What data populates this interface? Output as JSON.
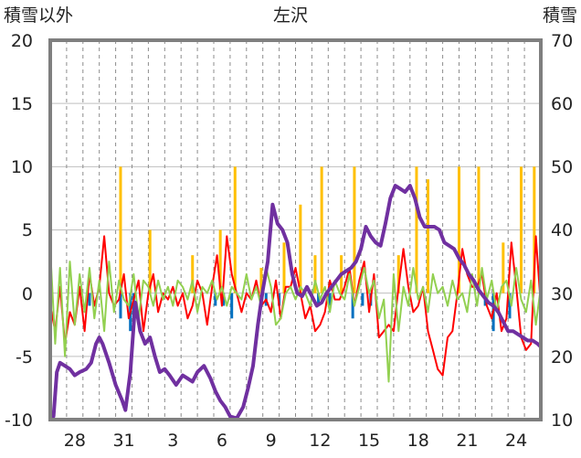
{
  "chart_data": {
    "type": "line",
    "title": "左沢",
    "ylabel_left": "積雪以外",
    "ylabel_right": "積雪",
    "ylim_left": [
      -10,
      20
    ],
    "ylim_right": [
      10,
      70
    ],
    "left_ticks": [
      "20",
      "15",
      "10",
      "5",
      "0",
      "-5",
      "-10"
    ],
    "right_ticks": [
      "70",
      "60",
      "50",
      "40",
      "30",
      "20",
      "10"
    ],
    "x_tick_labels": [
      "28",
      "31",
      "3",
      "6",
      "9",
      "12",
      "15",
      "18",
      "21",
      "24"
    ],
    "x_tick_positions": [
      1.5,
      4.5,
      7.5,
      10.5,
      13.5,
      16.5,
      19.5,
      22.5,
      25.5,
      28.5
    ],
    "xlim": [
      0,
      30
    ],
    "grid": true,
    "colors": {
      "snow_depth": "#7030A0",
      "temperature": "#FF0000",
      "precipitation": "#FFC000",
      "wind_speed": "#92D050",
      "snowfall": "#0070C0",
      "frame": "#7f7f7f"
    },
    "series": [
      {
        "axis": "right",
        "style": "line",
        "color": "#7030A0",
        "x": [
          0,
          0.2,
          0.4,
          0.6,
          0.9,
          1.2,
          1.5,
          1.8,
          2.2,
          2.5,
          2.8,
          3.0,
          3.2,
          3.6,
          4.0,
          4.4,
          4.6,
          4.9,
          5.2,
          5.5,
          5.8,
          6.1,
          6.4,
          6.7,
          7.0,
          7.3,
          7.7,
          8.1,
          8.4,
          8.7,
          9.0,
          9.4,
          9.8,
          10.1,
          10.4,
          10.7,
          11.0,
          11.4,
          11.8,
          12.1,
          12.4,
          12.7,
          13.0,
          13.3,
          13.6,
          13.9,
          14.2,
          14.5,
          14.8,
          15.1,
          15.4,
          15.7,
          16.0,
          16.3,
          16.6,
          16.9,
          17.2,
          17.5,
          17.8,
          18.1,
          18.4,
          18.7,
          19.0,
          19.3,
          19.6,
          19.9,
          20.2,
          20.5,
          20.8,
          21.1,
          21.4,
          21.7,
          22.0,
          22.3,
          22.6,
          22.9,
          23.2,
          23.5,
          23.8,
          24.1,
          24.4,
          24.7,
          25.0,
          25.3,
          25.6,
          25.9,
          26.2,
          26.5,
          26.8,
          27.1,
          27.4,
          27.7,
          28.0,
          28.3,
          28.6,
          28.9,
          29.2,
          29.5,
          29.8,
          30.0
        ],
        "y": [
          10.2,
          10.5,
          17.5,
          19.0,
          18.5,
          18.0,
          17.0,
          17.5,
          18.0,
          19.0,
          22.0,
          23.0,
          22.0,
          19.0,
          15.5,
          13.0,
          11.5,
          17.5,
          28.5,
          24.0,
          22.0,
          23.0,
          20.0,
          17.5,
          18.0,
          17.0,
          15.5,
          17.0,
          16.5,
          16.0,
          17.5,
          18.5,
          16.5,
          14.5,
          13.0,
          12.0,
          10.5,
          10.2,
          12.0,
          15.0,
          18.5,
          25.0,
          30.5,
          35.0,
          44.0,
          41.0,
          40.0,
          38.0,
          33.0,
          30.0,
          29.5,
          31.0,
          29.5,
          28.0,
          28.5,
          30.0,
          31.0,
          32.0,
          33.0,
          33.5,
          34.0,
          35.0,
          37.0,
          40.5,
          39.0,
          38.0,
          37.5,
          41.0,
          45.0,
          47.0,
          46.5,
          46.0,
          47.0,
          45.0,
          42.0,
          40.5,
          40.5,
          40.5,
          40.0,
          38.0,
          37.5,
          37.0,
          35.5,
          34.5,
          33.0,
          32.0,
          30.5,
          29.5,
          28.5,
          28.0,
          27.0,
          25.5,
          24.0,
          24.0,
          23.5,
          23.0,
          22.5,
          22.5,
          22.0,
          21.5
        ]
      },
      {
        "axis": "left",
        "style": "line",
        "color": "#FF0000",
        "x": [
          0,
          0.3,
          0.6,
          0.9,
          1.2,
          1.5,
          1.8,
          2.1,
          2.4,
          2.7,
          3.0,
          3.3,
          3.6,
          3.9,
          4.2,
          4.5,
          4.8,
          5.1,
          5.4,
          5.7,
          6.0,
          6.3,
          6.6,
          6.9,
          7.2,
          7.5,
          7.8,
          8.1,
          8.4,
          8.7,
          9.0,
          9.3,
          9.6,
          9.9,
          10.2,
          10.5,
          10.8,
          11.1,
          11.4,
          11.7,
          12.0,
          12.3,
          12.6,
          12.9,
          13.2,
          13.5,
          13.8,
          14.1,
          14.4,
          14.7,
          15.0,
          15.3,
          15.6,
          15.9,
          16.2,
          16.5,
          16.8,
          17.1,
          17.4,
          17.7,
          18.0,
          18.3,
          18.6,
          18.9,
          19.2,
          19.5,
          19.8,
          20.1,
          20.4,
          20.7,
          21.0,
          21.3,
          21.6,
          21.9,
          22.2,
          22.5,
          22.8,
          23.1,
          23.4,
          23.7,
          24.0,
          24.3,
          24.6,
          24.9,
          25.2,
          25.5,
          25.8,
          26.1,
          26.4,
          26.7,
          27.0,
          27.3,
          27.6,
          27.9,
          28.2,
          28.5,
          28.8,
          29.1,
          29.4,
          29.7,
          30.0
        ],
        "y": [
          -1.0,
          -3.0,
          0.5,
          -4.0,
          -1.5,
          -2.5,
          0.5,
          -3.0,
          1.5,
          -1.0,
          0.5,
          4.5,
          0.0,
          -1.0,
          -0.5,
          1.5,
          -2.0,
          -0.5,
          1.0,
          -3.0,
          0.0,
          1.5,
          -1.5,
          0.0,
          -0.5,
          0.5,
          -1.0,
          0.0,
          -2.0,
          -1.0,
          1.0,
          0.0,
          -2.5,
          0.5,
          3.0,
          -1.0,
          4.5,
          1.5,
          0.0,
          -1.5,
          0.0,
          -0.5,
          1.0,
          -1.0,
          -0.5,
          -1.5,
          1.0,
          -2.0,
          0.5,
          0.5,
          2.0,
          0.0,
          -2.0,
          -1.0,
          -3.0,
          -2.5,
          -1.5,
          1.0,
          -0.5,
          -0.5,
          0.5,
          2.0,
          -1.0,
          1.0,
          2.5,
          -1.5,
          1.5,
          -3.5,
          -3.0,
          -2.5,
          -3.0,
          0.5,
          3.5,
          0.5,
          -1.5,
          -1.0,
          0.5,
          -3.0,
          -4.5,
          -6.0,
          -6.5,
          -3.5,
          -3.0,
          0.0,
          3.5,
          1.5,
          0.5,
          0.5,
          1.5,
          -1.0,
          -2.0,
          0.0,
          -3.0,
          -2.0,
          4.0,
          0.5,
          -3.5,
          -4.5,
          -4.0,
          4.5,
          -1.0
        ]
      },
      {
        "axis": "left",
        "style": "line",
        "color": "#92D050",
        "x": [
          0,
          0.3,
          0.6,
          0.9,
          1.2,
          1.5,
          1.8,
          2.1,
          2.4,
          2.7,
          3.0,
          3.3,
          3.6,
          3.9,
          4.2,
          4.5,
          4.8,
          5.1,
          5.4,
          5.7,
          6.0,
          6.3,
          6.6,
          6.9,
          7.2,
          7.5,
          7.8,
          8.1,
          8.4,
          8.7,
          9.0,
          9.3,
          9.6,
          9.9,
          10.2,
          10.5,
          10.8,
          11.1,
          11.4,
          11.7,
          12.0,
          12.3,
          12.6,
          12.9,
          13.2,
          13.5,
          13.8,
          14.1,
          14.4,
          14.7,
          15.0,
          15.3,
          15.6,
          15.9,
          16.2,
          16.5,
          16.8,
          17.1,
          17.4,
          17.7,
          18.0,
          18.3,
          18.6,
          18.9,
          19.2,
          19.5,
          19.8,
          20.1,
          20.4,
          20.7,
          21.0,
          21.3,
          21.6,
          21.9,
          22.2,
          22.5,
          22.8,
          23.1,
          23.4,
          23.7,
          24.0,
          24.3,
          24.6,
          24.9,
          25.2,
          25.5,
          25.8,
          26.1,
          26.4,
          26.7,
          27.0,
          27.3,
          27.6,
          27.9,
          28.2,
          28.5,
          28.8,
          29.1,
          29.4,
          29.7,
          30.0
        ],
        "y": [
          3.5,
          -4.0,
          2.0,
          -5.0,
          2.5,
          -2.5,
          1.5,
          -1.5,
          2.0,
          -2.0,
          1.0,
          -3.0,
          2.5,
          -1.5,
          1.0,
          -0.5,
          -1.0,
          1.5,
          -2.0,
          1.0,
          0.5,
          -1.0,
          1.0,
          -0.5,
          0.5,
          -1.0,
          1.0,
          0.5,
          -0.5,
          1.0,
          -1.5,
          0.5,
          0.0,
          1.0,
          -0.5,
          0.5,
          -1.0,
          0.5,
          0.0,
          -0.5,
          1.5,
          -0.5,
          0.5,
          -1.0,
          2.0,
          0.5,
          -2.5,
          -2.0,
          0.0,
          0.5,
          -0.5,
          0.5,
          0.0,
          -1.0,
          1.0,
          -0.5,
          0.5,
          -1.5,
          1.0,
          0.0,
          -0.5,
          1.5,
          -1.0,
          0.5,
          2.0,
          0.0,
          1.0,
          -2.0,
          -0.5,
          -7.0,
          1.5,
          -3.0,
          0.5,
          -1.0,
          2.0,
          -0.5,
          0.5,
          -1.5,
          1.5,
          0.0,
          0.5,
          -1.0,
          1.0,
          -0.5,
          0.0,
          -1.5,
          1.5,
          -1.0,
          2.0,
          -0.5,
          1.0,
          -1.5,
          0.5,
          1.0,
          -1.0,
          2.0,
          -0.5,
          -1.5,
          1.0,
          -2.5,
          0.5
        ]
      }
    ],
    "bars": [
      {
        "axis": "left",
        "color": "#FFC000",
        "x": [
          4.3,
          6.1,
          8.7,
          10.4,
          11.3,
          12.9,
          14.3,
          15.3,
          16.2,
          16.6,
          17.8,
          18.6,
          21.3,
          22.4,
          23.1,
          25.0,
          26.2,
          27.7,
          28.8,
          29.6
        ],
        "values": [
          10,
          5,
          3,
          5,
          10,
          2,
          4,
          7,
          3,
          10,
          3,
          10,
          3,
          10,
          9,
          10,
          10,
          4,
          10,
          10
        ]
      },
      {
        "axis": "left",
        "color": "#0070C0",
        "x": [
          2.4,
          4.3,
          4.9,
          5.1,
          10.1,
          10.6,
          11.1,
          13.2,
          14.0,
          16.4,
          17.1,
          18.5,
          19.1,
          19.6,
          26.6,
          27.1,
          28.1
        ],
        "values": [
          -1,
          -2,
          -3,
          -2,
          -1,
          -1,
          -2,
          -1,
          -1,
          -1,
          -1,
          -2,
          -1,
          -1,
          -1,
          -3,
          -2
        ]
      }
    ]
  }
}
